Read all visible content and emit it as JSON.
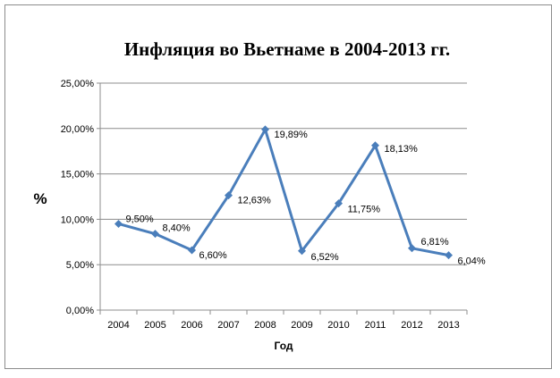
{
  "chart_data": {
    "type": "line",
    "title": "Инфляция во Вьетнаме в 2004-2013 гг.",
    "xlabel": "Год",
    "ylabel": "%",
    "categories": [
      "2004",
      "2005",
      "2006",
      "2007",
      "2008",
      "2009",
      "2010",
      "2011",
      "2012",
      "2013"
    ],
    "series": [
      {
        "values": [
          9.5,
          8.4,
          6.6,
          12.63,
          19.89,
          6.52,
          11.75,
          18.13,
          6.81,
          6.04
        ],
        "labels": [
          "9,50%",
          "8,40%",
          "6,60%",
          "12,63%",
          "19,89%",
          "6,52%",
          "11,75%",
          "18,13%",
          "6,81%",
          "6,04%"
        ],
        "color": "#4a7ebb"
      }
    ],
    "ylim": [
      0,
      25
    ],
    "yticks": [
      0,
      5,
      10,
      15,
      20,
      25
    ],
    "ytick_labels": [
      "0,00%",
      "5,00%",
      "10,00%",
      "15,00%",
      "20,00%",
      "25,00%"
    ],
    "grid": true,
    "legend": "none"
  }
}
